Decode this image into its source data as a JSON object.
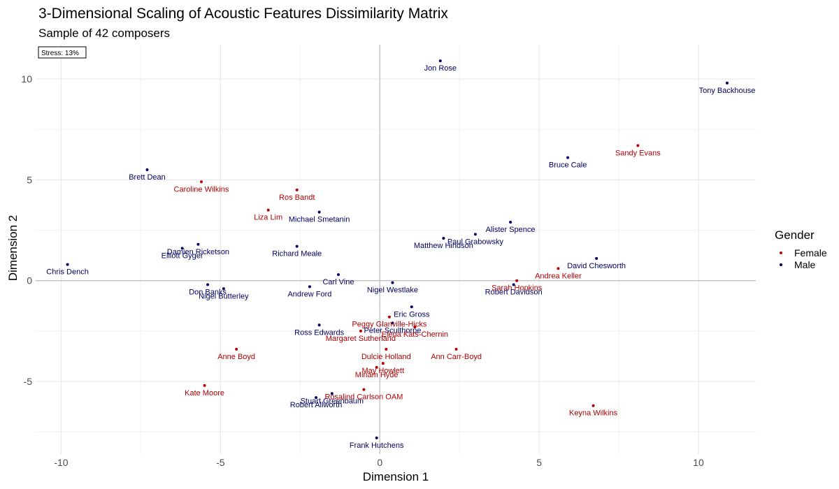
{
  "chart_data": {
    "type": "scatter",
    "title": "3-Dimensional Scaling of Acoustic Features Dissimilarity Matrix",
    "subtitle": "Sample of 42 composers",
    "xlabel": "Dimension 1",
    "ylabel": "Dimension 2",
    "xlim": [
      -10.8,
      11.8
    ],
    "ylim": [
      -8.6,
      11.7
    ],
    "x_ticks": [
      -10,
      -5,
      0,
      5,
      10
    ],
    "y_ticks": [
      -5,
      0,
      5,
      10
    ],
    "x_tick_labels": [
      "-10",
      "-5",
      "0",
      "5",
      "10"
    ],
    "y_tick_labels": [
      "-5",
      "0",
      "5",
      "10"
    ],
    "grid": true,
    "annotation": "Stress: 13%",
    "legend": {
      "title": "Gender",
      "position": "right",
      "entries": [
        {
          "label": "Female",
          "color": "#b30000"
        },
        {
          "label": "Male",
          "color": "#000066"
        }
      ]
    },
    "points": [
      {
        "label": "Jon Rose",
        "x": 1.9,
        "y": 10.9,
        "gender": "Male"
      },
      {
        "label": "Tony Backhouse",
        "x": 10.9,
        "y": 9.8,
        "gender": "Male"
      },
      {
        "label": "Sandy Evans",
        "x": 8.1,
        "y": 6.7,
        "gender": "Female"
      },
      {
        "label": "Bruce Cale",
        "x": 5.9,
        "y": 6.1,
        "gender": "Male"
      },
      {
        "label": "Brett Dean",
        "x": -7.3,
        "y": 5.5,
        "gender": "Male"
      },
      {
        "label": "Caroline Wilkins",
        "x": -5.6,
        "y": 4.9,
        "gender": "Female"
      },
      {
        "label": "Ros Bandt",
        "x": -2.6,
        "y": 4.5,
        "gender": "Female"
      },
      {
        "label": "Liza Lim",
        "x": -3.5,
        "y": 3.5,
        "gender": "Female"
      },
      {
        "label": "Michael Smetanin",
        "x": -1.9,
        "y": 3.4,
        "gender": "Male"
      },
      {
        "label": "Alister Spence",
        "x": 4.1,
        "y": 2.9,
        "gender": "Male"
      },
      {
        "label": "Paul Grabowsky",
        "x": 3.0,
        "y": 2.3,
        "gender": "Male"
      },
      {
        "label": "Matthew Hindson",
        "x": 2.0,
        "y": 2.1,
        "gender": "Male"
      },
      {
        "label": "Damien Ricketson",
        "x": -5.7,
        "y": 1.8,
        "gender": "Male"
      },
      {
        "label": "Elliott Gyger",
        "x": -6.2,
        "y": 1.6,
        "gender": "Male"
      },
      {
        "label": "Richard Meale",
        "x": -2.6,
        "y": 1.7,
        "gender": "Male"
      },
      {
        "label": "David Chesworth",
        "x": 6.8,
        "y": 1.1,
        "gender": "Male"
      },
      {
        "label": "Chris Dench",
        "x": -9.8,
        "y": 0.8,
        "gender": "Male"
      },
      {
        "label": "Andrea Keller",
        "x": 5.6,
        "y": 0.6,
        "gender": "Female"
      },
      {
        "label": "Sarah Hopkins",
        "x": 4.3,
        "y": 0.0,
        "gender": "Female"
      },
      {
        "label": "Carl Vine",
        "x": -1.3,
        "y": 0.3,
        "gender": "Male"
      },
      {
        "label": "Don Banks",
        "x": -5.4,
        "y": -0.2,
        "gender": "Male"
      },
      {
        "label": "Andrew Ford",
        "x": -2.2,
        "y": -0.3,
        "gender": "Male"
      },
      {
        "label": "Nigel Westlake",
        "x": 0.4,
        "y": -0.1,
        "gender": "Male"
      },
      {
        "label": "Robert Davidson",
        "x": 4.2,
        "y": -0.2,
        "gender": "Male"
      },
      {
        "label": "Nigel Butterley",
        "x": -4.9,
        "y": -0.4,
        "gender": "Male"
      },
      {
        "label": "Eric Gross",
        "x": 1.0,
        "y": -1.3,
        "gender": "Male"
      },
      {
        "label": "Peggy Glanville-Hicks",
        "x": 0.3,
        "y": -1.8,
        "gender": "Female"
      },
      {
        "label": "Ross Edwards",
        "x": -1.9,
        "y": -2.2,
        "gender": "Male"
      },
      {
        "label": "Peter Sculthorpe",
        "x": 0.4,
        "y": -2.1,
        "gender": "Male"
      },
      {
        "label": "Elena Kats-Chernin",
        "x": 1.1,
        "y": -2.3,
        "gender": "Female"
      },
      {
        "label": "Margaret Sutherland",
        "x": -0.6,
        "y": -2.5,
        "gender": "Female"
      },
      {
        "label": "Anne Boyd",
        "x": -4.5,
        "y": -3.4,
        "gender": "Female"
      },
      {
        "label": "Dulcie Holland",
        "x": 0.2,
        "y": -3.4,
        "gender": "Female"
      },
      {
        "label": "Ann Carr-Boyd",
        "x": 2.4,
        "y": -3.4,
        "gender": "Female"
      },
      {
        "label": "May Howlett",
        "x": 0.1,
        "y": -4.1,
        "gender": "Female"
      },
      {
        "label": "Miriam Hyde",
        "x": -0.1,
        "y": -4.3,
        "gender": "Female"
      },
      {
        "label": "Kate Moore",
        "x": -5.5,
        "y": -5.2,
        "gender": "Female"
      },
      {
        "label": "Stuart Greenbaum",
        "x": -1.5,
        "y": -5.6,
        "gender": "Male"
      },
      {
        "label": "Rosalind Carlson OAM",
        "x": -0.5,
        "y": -5.4,
        "gender": "Female"
      },
      {
        "label": "Robert Allworth",
        "x": -2.0,
        "y": -5.8,
        "gender": "Male"
      },
      {
        "label": "Keyna Wilkins",
        "x": 6.7,
        "y": -6.2,
        "gender": "Female"
      },
      {
        "label": "Frank Hutchens",
        "x": -0.1,
        "y": -7.8,
        "gender": "Male"
      }
    ]
  }
}
